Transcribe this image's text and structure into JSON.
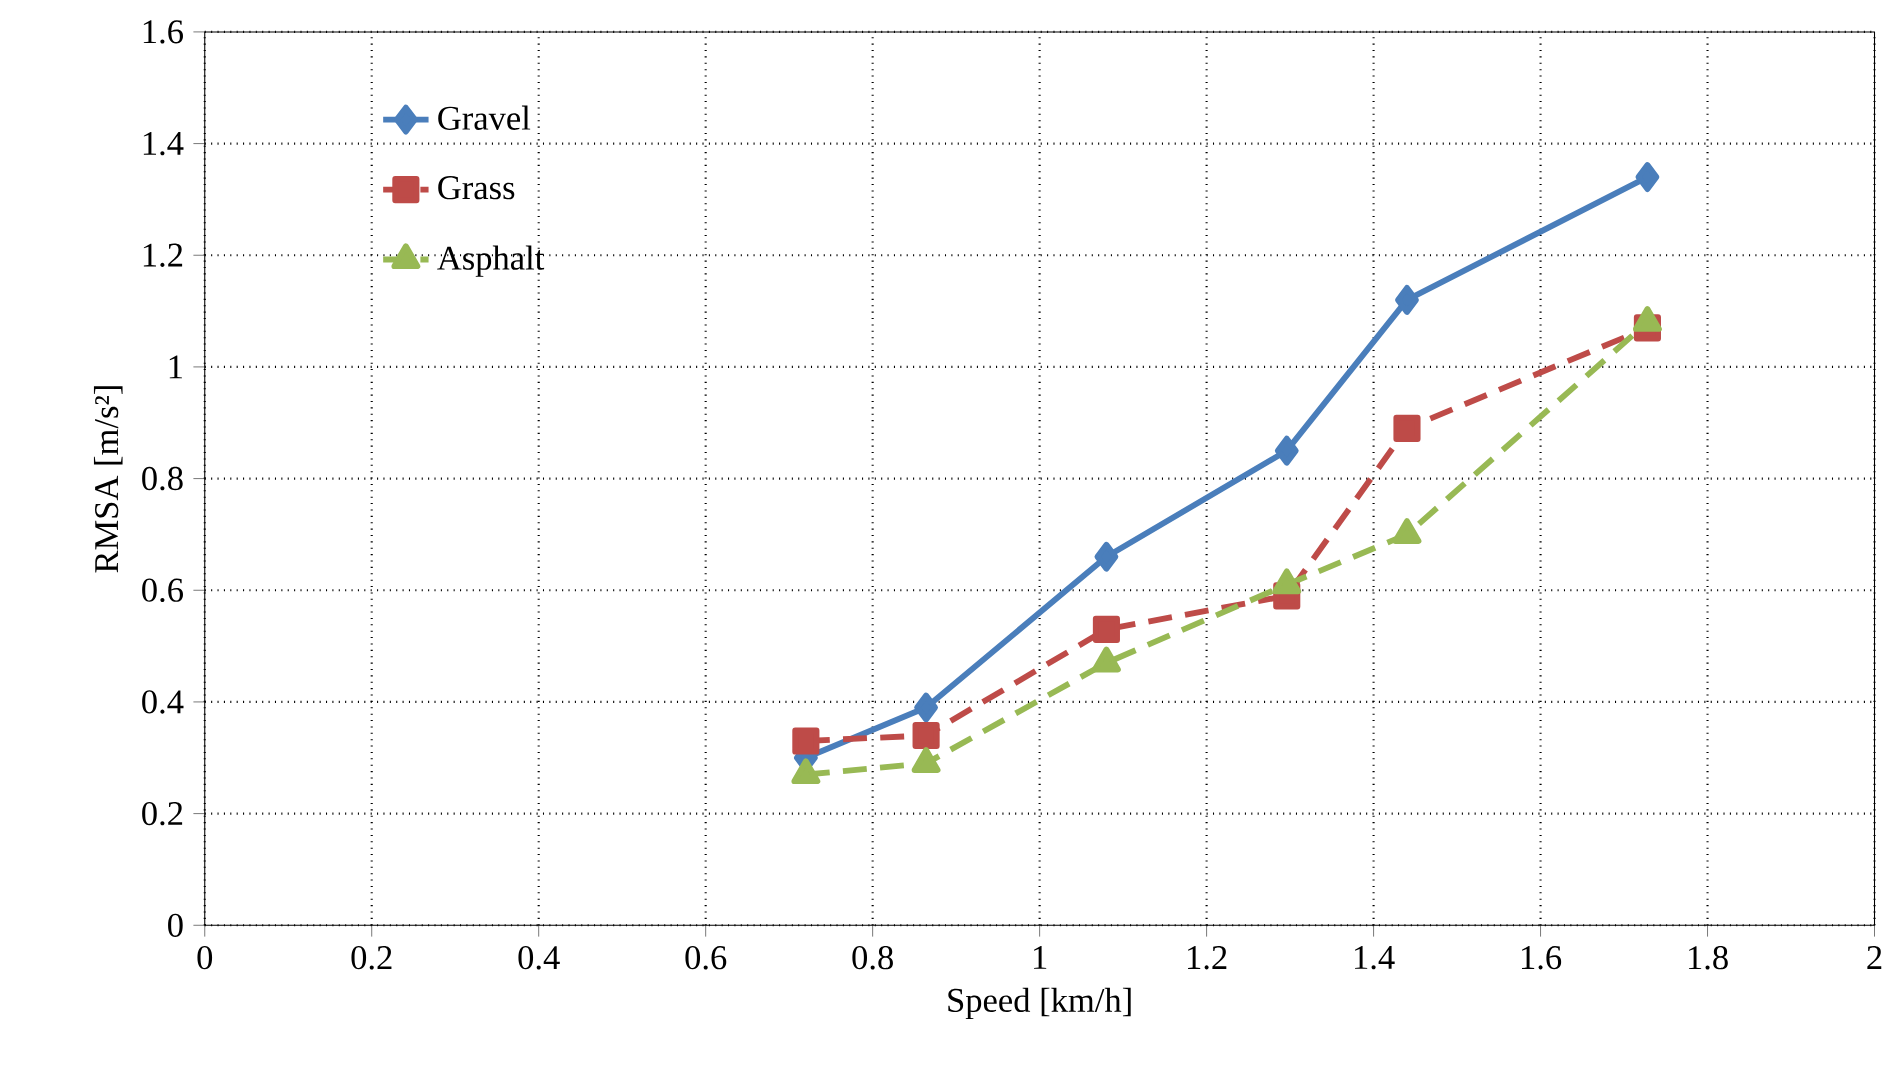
{
  "chart_data": {
    "type": "line",
    "xlabel": "Speed [km/h]",
    "ylabel": "RMSA  [m/s²]",
    "xlim": [
      0,
      2
    ],
    "ylim": [
      0,
      1.6
    ],
    "xticks": [
      0,
      0.2,
      0.4,
      0.6,
      0.8,
      1,
      1.2,
      1.4,
      1.6,
      1.8,
      2
    ],
    "yticks": [
      0,
      0.2,
      0.4,
      0.6,
      0.8,
      1,
      1.2,
      1.4,
      1.6
    ],
    "x": [
      0.72,
      0.864,
      1.08,
      1.296,
      1.44,
      1.728
    ],
    "grid": true,
    "legend": "top left",
    "series": [
      {
        "name": "Gravel",
        "color": "#4a7ebb",
        "marker": "diamond",
        "line_style": "solid",
        "values": [
          0.3,
          0.39,
          0.66,
          0.85,
          1.12,
          1.34
        ]
      },
      {
        "name": "Grass",
        "color": "#be4b48",
        "marker": "square",
        "line_style": "dashed",
        "values": [
          0.33,
          0.34,
          0.53,
          0.59,
          0.89,
          1.07
        ]
      },
      {
        "name": "Asphalt",
        "color": "#98b954",
        "marker": "triangle",
        "line_style": "dashed",
        "values": [
          0.27,
          0.29,
          0.47,
          0.61,
          0.7,
          1.08
        ]
      }
    ]
  }
}
